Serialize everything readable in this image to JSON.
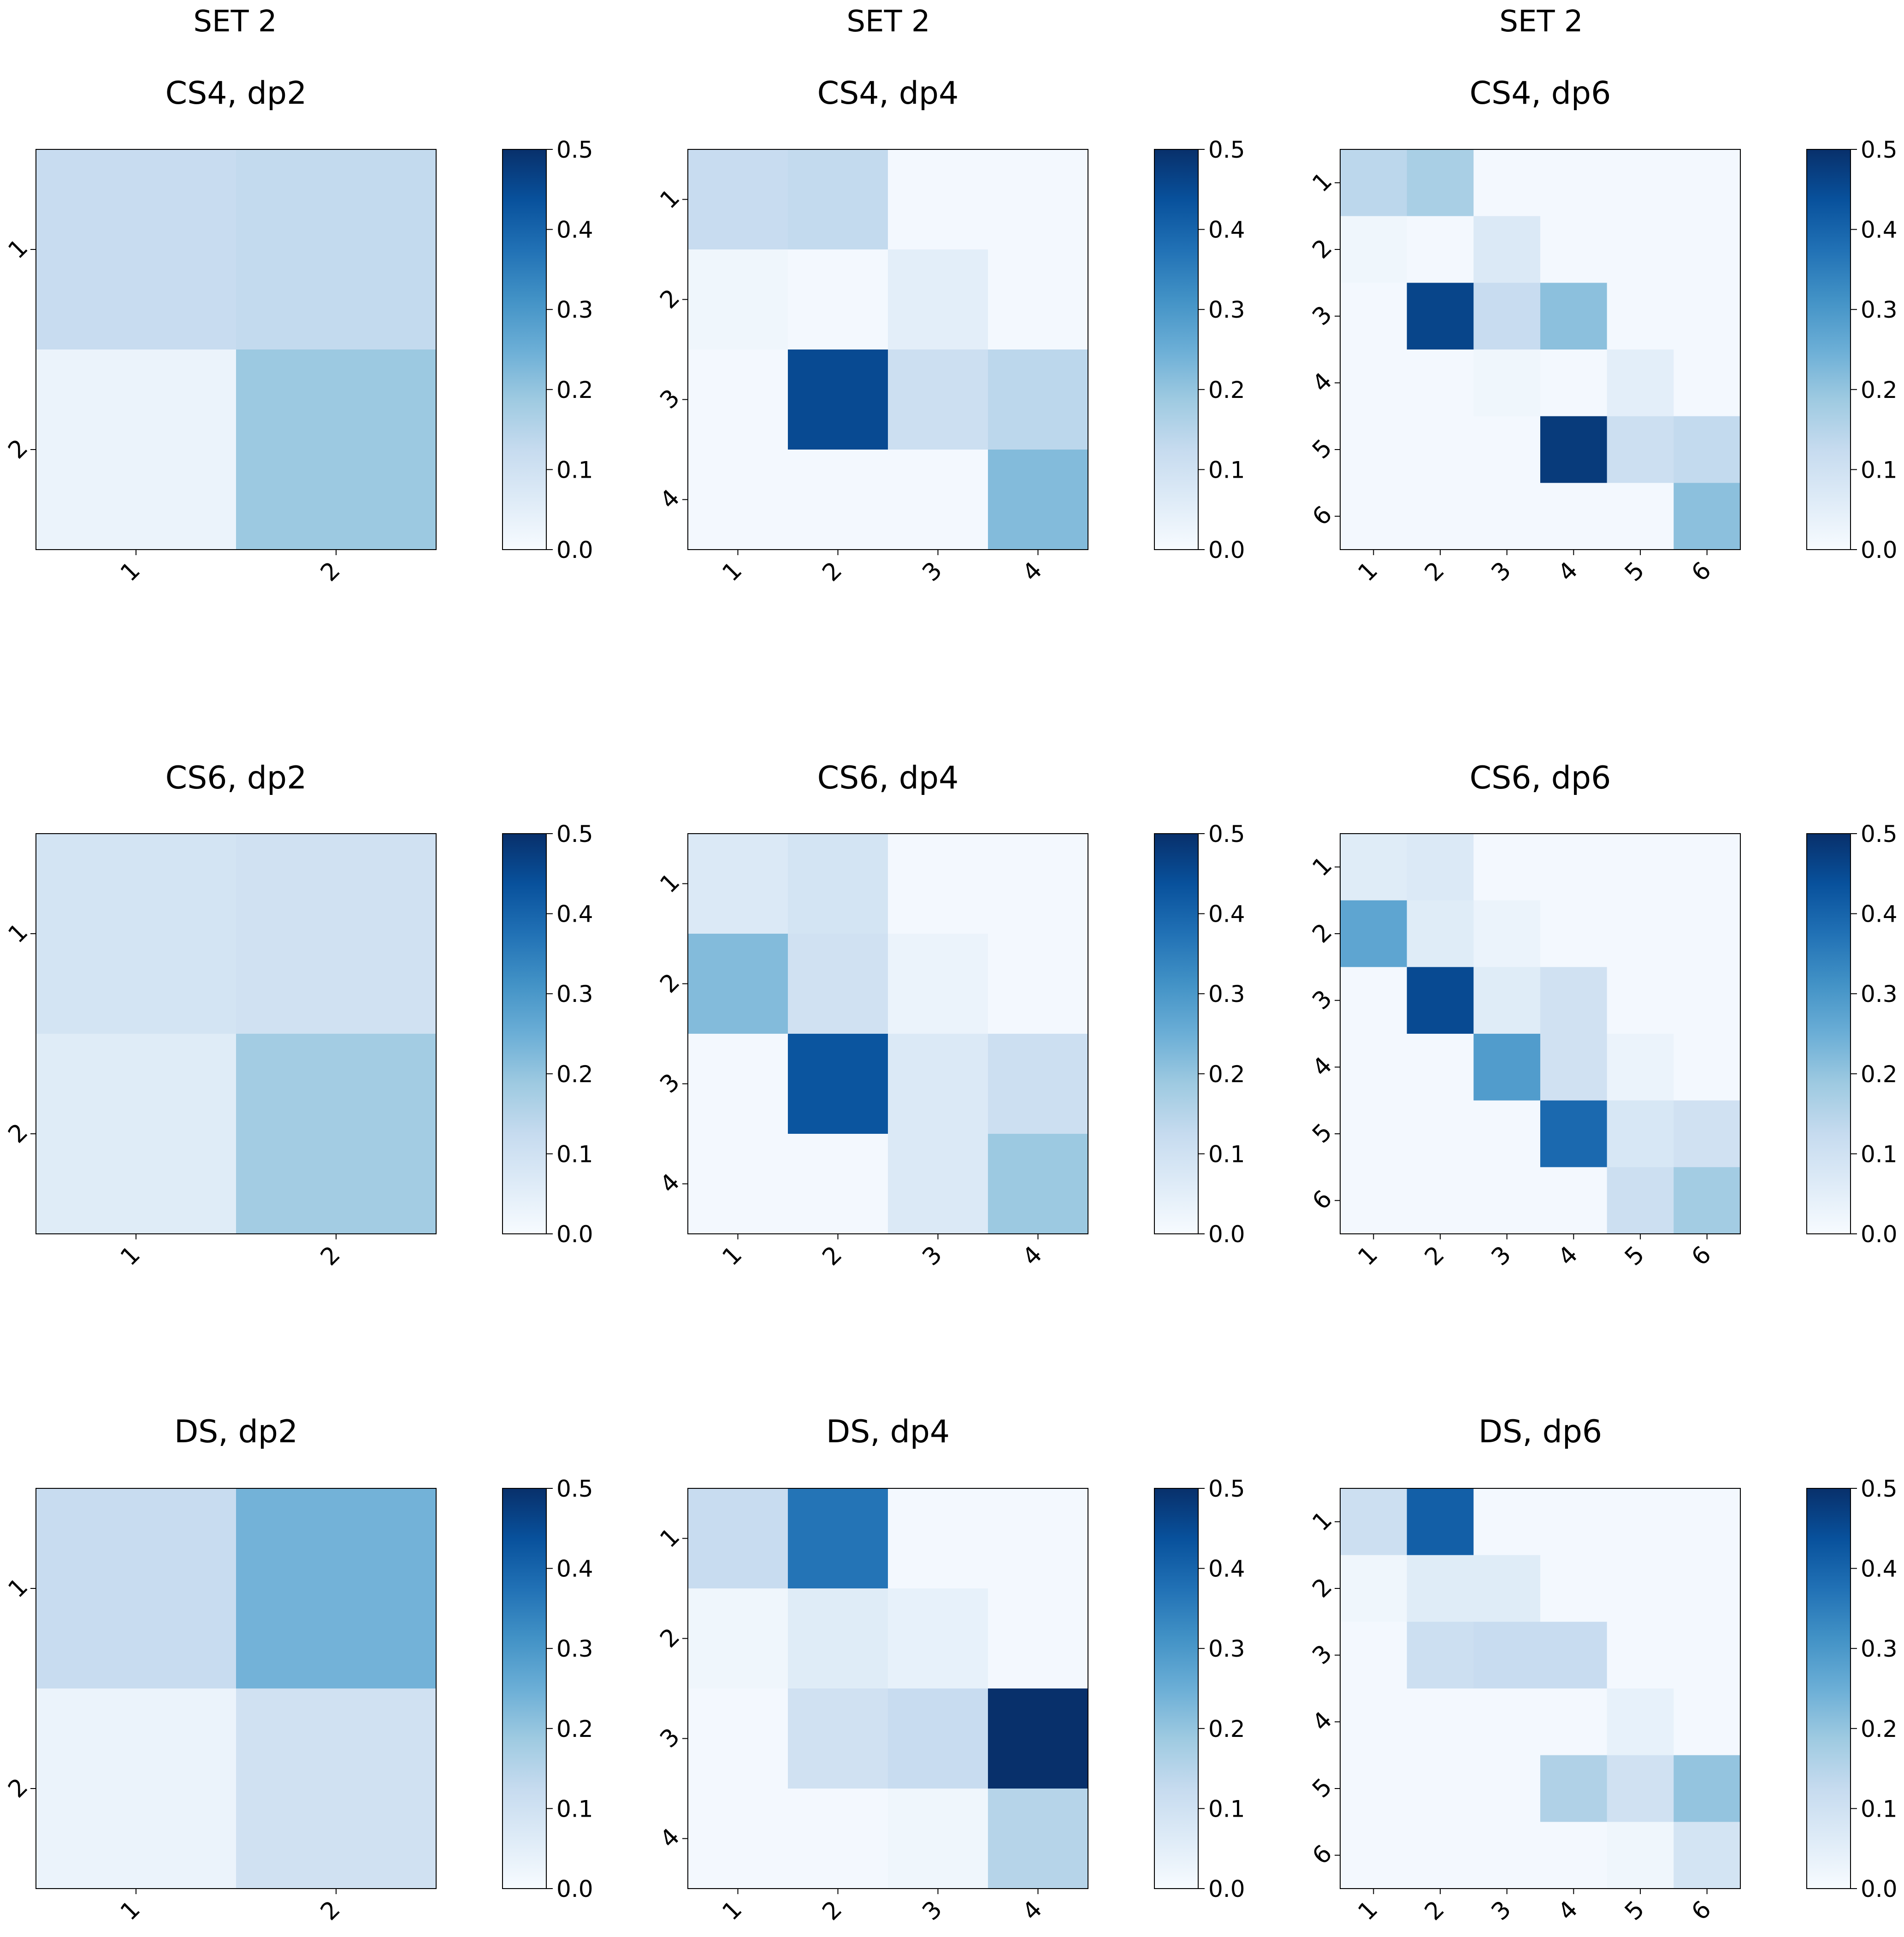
{
  "colormap": "Blues",
  "colors": {
    "low": "#f7fbff",
    "high": "#08306b",
    "frame": "#000000",
    "background": "#ffffff"
  },
  "column_headers": [
    "SET 2",
    "SET 2",
    "SET 2"
  ],
  "chart_data": [
    {
      "type": "heatmap",
      "title": "CS4, dp2",
      "x_ticks": [
        "1",
        "2"
      ],
      "y_ticks": [
        "1",
        "2"
      ],
      "values": [
        [
          0.12,
          0.13
        ],
        [
          0.03,
          0.19
        ]
      ],
      "colorbar": {
        "ticks": [
          "0.0",
          "0.1",
          "0.2",
          "0.3",
          "0.4",
          "0.5"
        ],
        "range": [
          0,
          0.5
        ]
      }
    },
    {
      "type": "heatmap",
      "title": "CS4, dp4",
      "x_ticks": [
        "1",
        "2",
        "3",
        "4"
      ],
      "y_ticks": [
        "1",
        "2",
        "3",
        "4"
      ],
      "values": [
        [
          0.12,
          0.13,
          0.01,
          0.01
        ],
        [
          0.02,
          0.01,
          0.05,
          0.01
        ],
        [
          0.01,
          0.45,
          0.11,
          0.14
        ],
        [
          0.01,
          0.01,
          0.01,
          0.22
        ]
      ],
      "colorbar": {
        "ticks": [
          "0.0",
          "0.1",
          "0.2",
          "0.3",
          "0.4",
          "0.5"
        ],
        "range": [
          0,
          0.5
        ]
      }
    },
    {
      "type": "heatmap",
      "title": "CS4, dp6",
      "x_ticks": [
        "1",
        "2",
        "3",
        "4",
        "5",
        "6"
      ],
      "y_ticks": [
        "1",
        "2",
        "3",
        "4",
        "5",
        "6"
      ],
      "values": [
        [
          0.14,
          0.17,
          0.01,
          0.01,
          0.01,
          0.01
        ],
        [
          0.02,
          0.01,
          0.07,
          0.01,
          0.01,
          0.01
        ],
        [
          0.01,
          0.46,
          0.12,
          0.21,
          0.01,
          0.01
        ],
        [
          0.01,
          0.01,
          0.02,
          0.01,
          0.05,
          0.01
        ],
        [
          0.01,
          0.01,
          0.01,
          0.48,
          0.11,
          0.13
        ],
        [
          0.01,
          0.01,
          0.01,
          0.01,
          0.01,
          0.21
        ]
      ],
      "colorbar": {
        "ticks": [
          "0.0",
          "0.1",
          "0.2",
          "0.3",
          "0.4",
          "0.5"
        ],
        "range": [
          0,
          0.5
        ]
      }
    },
    {
      "type": "heatmap",
      "title": "CS6, dp2",
      "x_ticks": [
        "1",
        "2"
      ],
      "y_ticks": [
        "1",
        "2"
      ],
      "values": [
        [
          0.09,
          0.1
        ],
        [
          0.06,
          0.18
        ]
      ],
      "colorbar": {
        "ticks": [
          "0.0",
          "0.1",
          "0.2",
          "0.3",
          "0.4",
          "0.5"
        ],
        "range": [
          0,
          0.5
        ]
      }
    },
    {
      "type": "heatmap",
      "title": "CS6, dp4",
      "x_ticks": [
        "1",
        "2",
        "3",
        "4"
      ],
      "y_ticks": [
        "1",
        "2",
        "3",
        "4"
      ],
      "values": [
        [
          0.07,
          0.09,
          0.01,
          0.01
        ],
        [
          0.22,
          0.1,
          0.03,
          0.01
        ],
        [
          0.01,
          0.43,
          0.07,
          0.11
        ],
        [
          0.01,
          0.01,
          0.07,
          0.19
        ]
      ],
      "colorbar": {
        "ticks": [
          "0.0",
          "0.1",
          "0.2",
          "0.3",
          "0.4",
          "0.5"
        ],
        "range": [
          0,
          0.5
        ]
      }
    },
    {
      "type": "heatmap",
      "title": "CS6, dp6",
      "x_ticks": [
        "1",
        "2",
        "3",
        "4",
        "5",
        "6"
      ],
      "y_ticks": [
        "1",
        "2",
        "3",
        "4",
        "5",
        "6"
      ],
      "values": [
        [
          0.06,
          0.07,
          0.01,
          0.01,
          0.01,
          0.01
        ],
        [
          0.27,
          0.06,
          0.03,
          0.01,
          0.01,
          0.01
        ],
        [
          0.01,
          0.45,
          0.06,
          0.1,
          0.01,
          0.01
        ],
        [
          0.01,
          0.01,
          0.29,
          0.1,
          0.03,
          0.01
        ],
        [
          0.01,
          0.01,
          0.01,
          0.39,
          0.08,
          0.1
        ],
        [
          0.01,
          0.01,
          0.01,
          0.01,
          0.11,
          0.18
        ]
      ],
      "colorbar": {
        "ticks": [
          "0.0",
          "0.1",
          "0.2",
          "0.3",
          "0.4",
          "0.5"
        ],
        "range": [
          0,
          0.5
        ]
      }
    },
    {
      "type": "heatmap",
      "title": "DS, dp2",
      "x_ticks": [
        "1",
        "2"
      ],
      "y_ticks": [
        "1",
        "2"
      ],
      "values": [
        [
          0.12,
          0.24
        ],
        [
          0.03,
          0.1
        ]
      ],
      "colorbar": {
        "ticks": [
          "0.0",
          "0.1",
          "0.2",
          "0.3",
          "0.4",
          "0.5"
        ],
        "range": [
          0,
          0.5
        ]
      }
    },
    {
      "type": "heatmap",
      "title": "DS, dp4",
      "x_ticks": [
        "1",
        "2",
        "3",
        "4"
      ],
      "y_ticks": [
        "1",
        "2",
        "3",
        "4"
      ],
      "values": [
        [
          0.12,
          0.37,
          0.01,
          0.01
        ],
        [
          0.02,
          0.06,
          0.04,
          0.01
        ],
        [
          0.01,
          0.1,
          0.12,
          0.5
        ],
        [
          0.01,
          0.01,
          0.02,
          0.15
        ]
      ],
      "colorbar": {
        "ticks": [
          "0.0",
          "0.1",
          "0.2",
          "0.3",
          "0.4",
          "0.5"
        ],
        "range": [
          0,
          0.5
        ]
      }
    },
    {
      "type": "heatmap",
      "title": "DS, dp6",
      "x_ticks": [
        "1",
        "2",
        "3",
        "4",
        "5",
        "6"
      ],
      "y_ticks": [
        "1",
        "2",
        "3",
        "4",
        "5",
        "6"
      ],
      "values": [
        [
          0.11,
          0.41,
          0.01,
          0.01,
          0.01,
          0.01
        ],
        [
          0.02,
          0.06,
          0.06,
          0.01,
          0.01,
          0.01
        ],
        [
          0.01,
          0.11,
          0.12,
          0.12,
          0.01,
          0.01
        ],
        [
          0.01,
          0.01,
          0.01,
          0.01,
          0.04,
          0.01
        ],
        [
          0.01,
          0.01,
          0.01,
          0.16,
          0.1,
          0.2
        ],
        [
          0.01,
          0.01,
          0.01,
          0.01,
          0.02,
          0.09
        ]
      ],
      "colorbar": {
        "ticks": [
          "0.0",
          "0.1",
          "0.2",
          "0.3",
          "0.4",
          "0.5"
        ],
        "range": [
          0,
          0.5
        ]
      }
    }
  ]
}
